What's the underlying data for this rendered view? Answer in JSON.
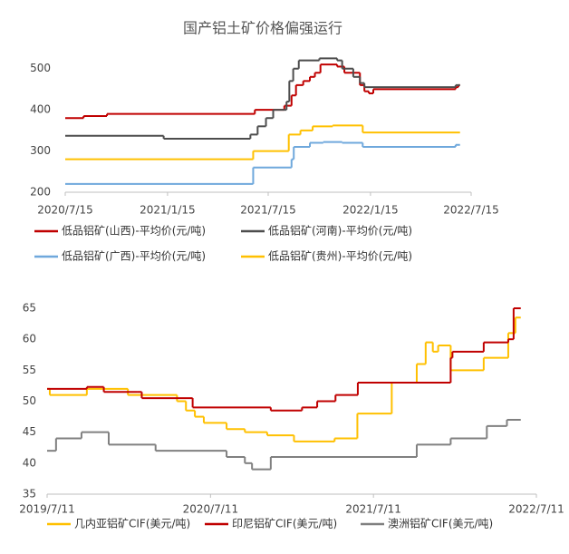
{
  "chart_data": [
    {
      "type": "line",
      "title": "国产铝土矿价格偏强运行",
      "xlim": [
        "2020/7/15",
        "2022/7/15"
      ],
      "xticks": [
        "2020/7/15",
        "2021/1/15",
        "2021/7/15",
        "2022/1/15",
        "2022/7/15"
      ],
      "ylim": [
        200,
        550
      ],
      "yticks": [
        200,
        300,
        400,
        500
      ],
      "step": true,
      "series": [
        {
          "name": "低品铝矿(山西)-平均价(元/吨)",
          "color": "#c00000",
          "x": [
            "2020/7/15",
            "2020/8/17",
            "2020/9/28",
            "2021/6/21",
            "2021/8/13",
            "2021/8/26",
            "2021/9/3",
            "2021/9/16",
            "2021/9/28",
            "2021/10/7",
            "2021/10/17",
            "2021/11/16",
            "2021/11/29",
            "2021/12/15",
            "2021/12/27",
            "2022/1/4",
            "2022/1/12",
            "2022/1/20",
            "2022/6/17",
            "2022/6/22",
            "2022/6/25"
          ],
          "values": [
            380,
            385,
            390,
            400,
            410,
            435,
            460,
            470,
            480,
            490,
            510,
            505,
            490,
            490,
            460,
            445,
            440,
            450,
            455,
            460,
            460
          ]
        },
        {
          "name": "低品铝矿(河南)-平均价(元/吨)",
          "color": "#4d4d4d",
          "x": [
            "2020/7/15",
            "2021/1/8",
            "2021/6/13",
            "2021/6/26",
            "2021/7/11",
            "2021/7/24",
            "2021/8/17",
            "2021/8/22",
            "2021/8/29",
            "2021/9/8",
            "2021/10/15",
            "2021/11/16",
            "2021/11/25",
            "2021/12/15",
            "2021/12/27",
            "2022/1/4",
            "2022/6/17",
            "2022/6/25"
          ],
          "values": [
            337,
            330,
            340,
            360,
            380,
            400,
            420,
            470,
            500,
            520,
            525,
            520,
            500,
            480,
            465,
            455,
            460,
            460
          ]
        },
        {
          "name": "低品铝矿(广西)-平均价(元/吨)",
          "color": "#6fa8dc",
          "x": [
            "2020/7/15",
            "2021/6/18",
            "2021/8/26",
            "2021/8/30",
            "2021/9/28",
            "2021/10/22",
            "2021/11/25",
            "2022/1/1",
            "2022/6/17",
            "2022/6/25"
          ],
          "values": [
            220,
            260,
            280,
            310,
            320,
            322,
            320,
            310,
            315,
            315
          ]
        },
        {
          "name": "低品铝矿(贵州)-平均价(元/吨)",
          "color": "#ffc000",
          "x": [
            "2020/7/15",
            "2021/6/18",
            "2021/8/21",
            "2021/9/11",
            "2021/10/3",
            "2021/11/8",
            "2022/1/1",
            "2022/6/25"
          ],
          "values": [
            280,
            300,
            340,
            350,
            360,
            362,
            345,
            345
          ]
        }
      ]
    },
    {
      "type": "line",
      "xlim": [
        "2019/7/11",
        "2022/7/11"
      ],
      "xticks": [
        "2019/7/11",
        "2020/7/11",
        "2021/7/11",
        "2022/7/11"
      ],
      "ylim": [
        35,
        65
      ],
      "yticks": [
        35,
        40,
        45,
        50,
        55,
        60,
        65
      ],
      "step": true,
      "series": [
        {
          "name": "几内亚铝矿CIF(美元/吨)",
          "color": "#ffc000",
          "x": [
            "2019/7/11",
            "2019/7/17",
            "2019/10/8",
            "2020/1/8",
            "2020/4/27",
            "2020/5/17",
            "2020/6/6",
            "2020/6/26",
            "2020/8/16",
            "2020/9/26",
            "2020/11/15",
            "2021/1/14",
            "2021/4/15",
            "2021/6/5",
            "2021/8/21",
            "2021/10/16",
            "2021/11/5",
            "2021/11/21",
            "2021/12/3",
            "2021/12/31",
            "2022/3/15",
            "2022/5/9",
            "2022/5/25",
            "2022/6/6"
          ],
          "values": [
            52,
            51,
            52,
            51,
            50,
            48.5,
            47.5,
            46.5,
            45.5,
            45,
            44.5,
            43.5,
            44,
            48,
            53,
            56,
            59.5,
            58,
            59,
            55,
            57,
            61,
            63.5,
            63.5
          ]
        },
        {
          "name": "印尼铝矿CIF(美元/吨)",
          "color": "#c00000",
          "x": [
            "2019/7/11",
            "2019/10/8",
            "2019/11/15",
            "2020/1/29",
            "2020/2/8",
            "2020/6/1",
            "2020/11/23",
            "2021/2/1",
            "2021/3/7",
            "2021/4/17",
            "2021/6/6",
            "2021/12/31",
            "2022/1/4",
            "2022/3/15",
            "2022/5/9",
            "2022/5/21",
            "2022/6/6"
          ],
          "values": [
            52,
            52.3,
            51.5,
            51.5,
            50.5,
            49,
            48.5,
            49,
            50,
            51,
            53,
            57,
            58,
            59.5,
            60,
            65,
            65
          ]
        },
        {
          "name": "澳洲铝矿CIF(美元/吨)",
          "color": "#808080",
          "x": [
            "2019/7/11",
            "2019/7/31",
            "2019/9/26",
            "2019/11/26",
            "2020/3/10",
            "2020/8/16",
            "2020/9/26",
            "2020/10/12",
            "2020/11/23",
            "2021/10/16",
            "2021/12/31",
            "2022/3/22",
            "2022/5/6",
            "2022/6/6"
          ],
          "values": [
            42,
            44,
            45,
            43,
            42,
            41,
            40,
            39,
            41,
            43,
            44,
            46,
            47,
            47
          ]
        }
      ]
    }
  ]
}
